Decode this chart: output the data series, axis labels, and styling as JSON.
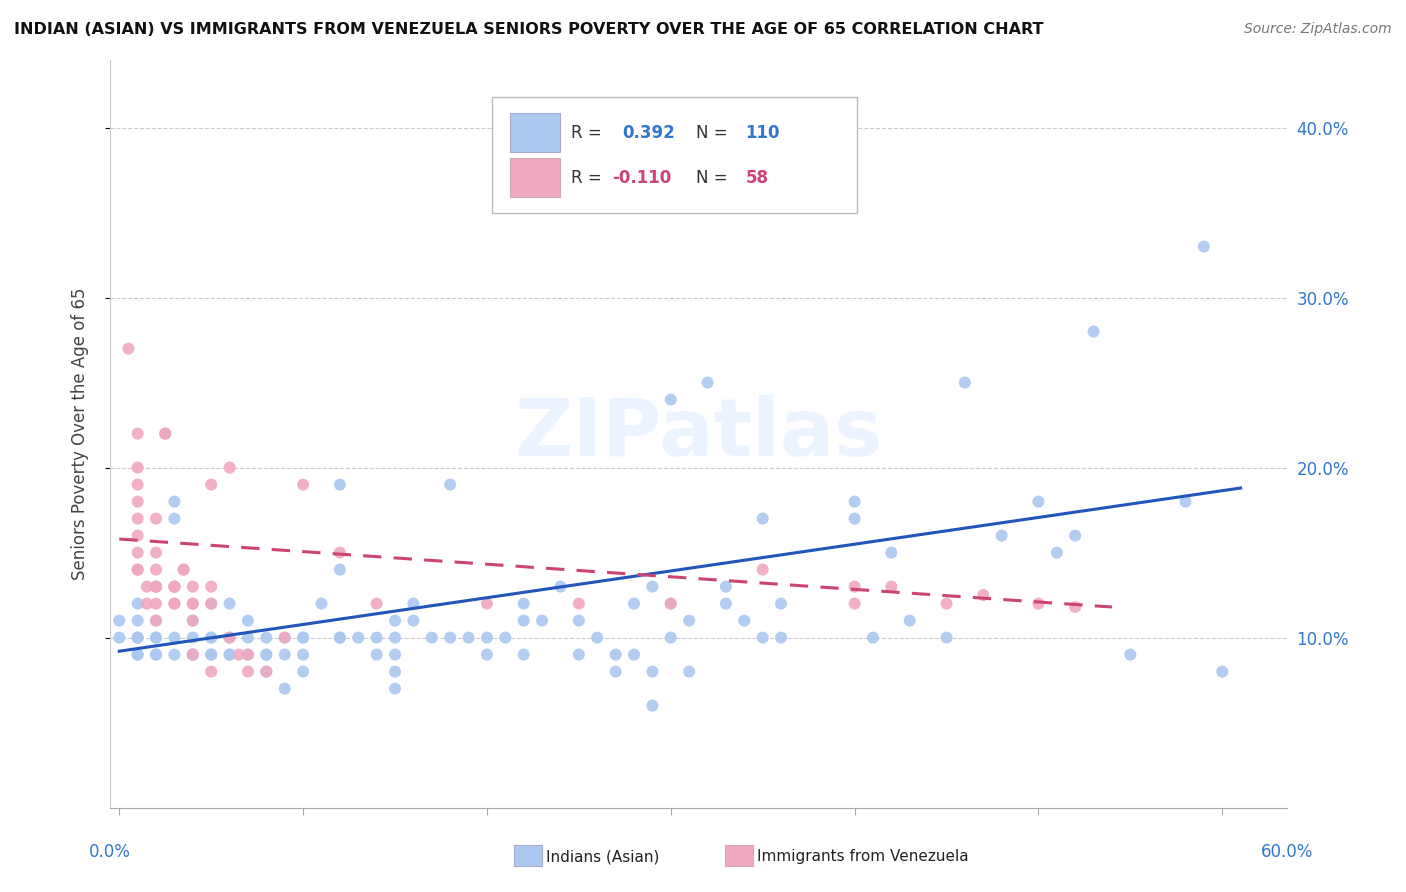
{
  "title": "INDIAN (ASIAN) VS IMMIGRANTS FROM VENEZUELA SENIORS POVERTY OVER THE AGE OF 65 CORRELATION CHART",
  "source": "Source: ZipAtlas.com",
  "ylabel": "Seniors Poverty Over the Age of 65",
  "ylim": [
    0.0,
    0.44
  ],
  "xlim": [
    -0.005,
    0.635
  ],
  "yticks": [
    0.1,
    0.2,
    0.3,
    0.4
  ],
  "ytick_labels": [
    "10.0%",
    "20.0%",
    "30.0%",
    "40.0%"
  ],
  "xticks": [
    0.0,
    0.1,
    0.2,
    0.3,
    0.4,
    0.5,
    0.6
  ],
  "watermark": "ZIPatlas",
  "blue_color": "#aac8f0",
  "pink_color": "#f0a8c0",
  "blue_line_color": "#2255bb",
  "pink_line_color": "#cc4477",
  "blue_scatter": [
    [
      0.0,
      0.11
    ],
    [
      0.0,
      0.1
    ],
    [
      0.01,
      0.1
    ],
    [
      0.01,
      0.09
    ],
    [
      0.01,
      0.12
    ],
    [
      0.01,
      0.11
    ],
    [
      0.01,
      0.1
    ],
    [
      0.01,
      0.09
    ],
    [
      0.02,
      0.09
    ],
    [
      0.02,
      0.1
    ],
    [
      0.02,
      0.11
    ],
    [
      0.02,
      0.13
    ],
    [
      0.02,
      0.09
    ],
    [
      0.02,
      0.1
    ],
    [
      0.03,
      0.1
    ],
    [
      0.03,
      0.09
    ],
    [
      0.03,
      0.13
    ],
    [
      0.03,
      0.18
    ],
    [
      0.03,
      0.17
    ],
    [
      0.04,
      0.09
    ],
    [
      0.04,
      0.09
    ],
    [
      0.04,
      0.1
    ],
    [
      0.04,
      0.11
    ],
    [
      0.04,
      0.09
    ],
    [
      0.05,
      0.1
    ],
    [
      0.05,
      0.09
    ],
    [
      0.05,
      0.09
    ],
    [
      0.05,
      0.12
    ],
    [
      0.05,
      0.1
    ],
    [
      0.06,
      0.12
    ],
    [
      0.06,
      0.09
    ],
    [
      0.06,
      0.09
    ],
    [
      0.06,
      0.1
    ],
    [
      0.07,
      0.09
    ],
    [
      0.07,
      0.11
    ],
    [
      0.07,
      0.1
    ],
    [
      0.08,
      0.1
    ],
    [
      0.08,
      0.09
    ],
    [
      0.08,
      0.09
    ],
    [
      0.08,
      0.08
    ],
    [
      0.09,
      0.09
    ],
    [
      0.09,
      0.1
    ],
    [
      0.09,
      0.07
    ],
    [
      0.1,
      0.1
    ],
    [
      0.1,
      0.08
    ],
    [
      0.1,
      0.09
    ],
    [
      0.1,
      0.1
    ],
    [
      0.11,
      0.12
    ],
    [
      0.12,
      0.14
    ],
    [
      0.12,
      0.19
    ],
    [
      0.12,
      0.1
    ],
    [
      0.12,
      0.1
    ],
    [
      0.13,
      0.1
    ],
    [
      0.14,
      0.1
    ],
    [
      0.14,
      0.09
    ],
    [
      0.15,
      0.09
    ],
    [
      0.15,
      0.1
    ],
    [
      0.15,
      0.11
    ],
    [
      0.15,
      0.08
    ],
    [
      0.15,
      0.07
    ],
    [
      0.16,
      0.11
    ],
    [
      0.16,
      0.12
    ],
    [
      0.17,
      0.1
    ],
    [
      0.18,
      0.1
    ],
    [
      0.18,
      0.19
    ],
    [
      0.19,
      0.1
    ],
    [
      0.2,
      0.1
    ],
    [
      0.2,
      0.09
    ],
    [
      0.21,
      0.1
    ],
    [
      0.22,
      0.11
    ],
    [
      0.22,
      0.09
    ],
    [
      0.22,
      0.12
    ],
    [
      0.23,
      0.11
    ],
    [
      0.24,
      0.13
    ],
    [
      0.25,
      0.11
    ],
    [
      0.25,
      0.09
    ],
    [
      0.26,
      0.1
    ],
    [
      0.27,
      0.08
    ],
    [
      0.27,
      0.09
    ],
    [
      0.28,
      0.09
    ],
    [
      0.28,
      0.12
    ],
    [
      0.29,
      0.13
    ],
    [
      0.29,
      0.08
    ],
    [
      0.29,
      0.06
    ],
    [
      0.3,
      0.24
    ],
    [
      0.3,
      0.12
    ],
    [
      0.3,
      0.1
    ],
    [
      0.31,
      0.08
    ],
    [
      0.31,
      0.11
    ],
    [
      0.32,
      0.25
    ],
    [
      0.33,
      0.13
    ],
    [
      0.33,
      0.12
    ],
    [
      0.34,
      0.11
    ],
    [
      0.35,
      0.1
    ],
    [
      0.35,
      0.17
    ],
    [
      0.36,
      0.1
    ],
    [
      0.36,
      0.12
    ],
    [
      0.4,
      0.17
    ],
    [
      0.4,
      0.18
    ],
    [
      0.41,
      0.1
    ],
    [
      0.42,
      0.15
    ],
    [
      0.43,
      0.11
    ],
    [
      0.45,
      0.1
    ],
    [
      0.46,
      0.25
    ],
    [
      0.48,
      0.16
    ],
    [
      0.5,
      0.18
    ],
    [
      0.51,
      0.15
    ],
    [
      0.52,
      0.16
    ],
    [
      0.53,
      0.28
    ],
    [
      0.55,
      0.09
    ],
    [
      0.58,
      0.18
    ],
    [
      0.59,
      0.33
    ],
    [
      0.6,
      0.08
    ]
  ],
  "pink_scatter": [
    [
      0.005,
      0.27
    ],
    [
      0.01,
      0.2
    ],
    [
      0.01,
      0.22
    ],
    [
      0.01,
      0.19
    ],
    [
      0.01,
      0.18
    ],
    [
      0.01,
      0.17
    ],
    [
      0.01,
      0.16
    ],
    [
      0.01,
      0.15
    ],
    [
      0.01,
      0.14
    ],
    [
      0.01,
      0.14
    ],
    [
      0.015,
      0.13
    ],
    [
      0.015,
      0.12
    ],
    [
      0.02,
      0.12
    ],
    [
      0.02,
      0.11
    ],
    [
      0.02,
      0.13
    ],
    [
      0.02,
      0.13
    ],
    [
      0.02,
      0.14
    ],
    [
      0.02,
      0.15
    ],
    [
      0.02,
      0.17
    ],
    [
      0.025,
      0.22
    ],
    [
      0.025,
      0.22
    ],
    [
      0.03,
      0.13
    ],
    [
      0.03,
      0.13
    ],
    [
      0.03,
      0.12
    ],
    [
      0.03,
      0.12
    ],
    [
      0.03,
      0.13
    ],
    [
      0.035,
      0.14
    ],
    [
      0.035,
      0.14
    ],
    [
      0.04,
      0.13
    ],
    [
      0.04,
      0.12
    ],
    [
      0.04,
      0.12
    ],
    [
      0.04,
      0.11
    ],
    [
      0.04,
      0.09
    ],
    [
      0.05,
      0.08
    ],
    [
      0.05,
      0.19
    ],
    [
      0.05,
      0.13
    ],
    [
      0.05,
      0.12
    ],
    [
      0.06,
      0.1
    ],
    [
      0.06,
      0.2
    ],
    [
      0.065,
      0.09
    ],
    [
      0.07,
      0.09
    ],
    [
      0.07,
      0.08
    ],
    [
      0.08,
      0.08
    ],
    [
      0.09,
      0.1
    ],
    [
      0.1,
      0.19
    ],
    [
      0.12,
      0.15
    ],
    [
      0.14,
      0.12
    ],
    [
      0.2,
      0.12
    ],
    [
      0.25,
      0.12
    ],
    [
      0.3,
      0.12
    ],
    [
      0.35,
      0.14
    ],
    [
      0.4,
      0.13
    ],
    [
      0.4,
      0.12
    ],
    [
      0.42,
      0.13
    ],
    [
      0.45,
      0.12
    ],
    [
      0.47,
      0.125
    ],
    [
      0.5,
      0.12
    ],
    [
      0.52,
      0.118
    ]
  ],
  "blue_trend": [
    0.0,
    0.61,
    0.092,
    0.188
  ],
  "pink_trend": [
    0.0,
    0.54,
    0.158,
    0.118
  ]
}
